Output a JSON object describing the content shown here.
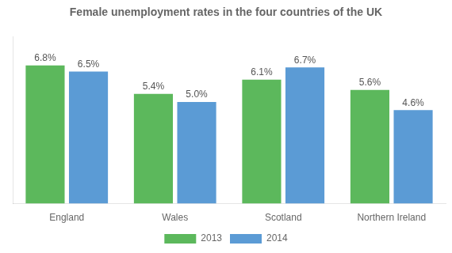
{
  "chart_data": {
    "type": "bar",
    "title": "Female unemployment rates in the four countries of the UK",
    "categories": [
      "England",
      "Wales",
      "Scotland",
      "Northern Ireland"
    ],
    "series": [
      {
        "name": "2013",
        "color": "#5cb85c",
        "values": [
          6.8,
          5.4,
          6.1,
          5.6
        ],
        "value_labels": [
          "6.8%",
          "5.4%",
          "6.1%",
          "5.6%"
        ]
      },
      {
        "name": "2014",
        "color": "#5b9bd5",
        "values": [
          6.5,
          5.0,
          6.7,
          4.6
        ],
        "value_labels": [
          "6.5%",
          "5.0%",
          "6.7%",
          "4.6%"
        ]
      }
    ],
    "ylim": [
      0,
      8.2
    ],
    "grid": false,
    "legend": "bottom",
    "data_labels": true,
    "tick_labels": "x"
  }
}
